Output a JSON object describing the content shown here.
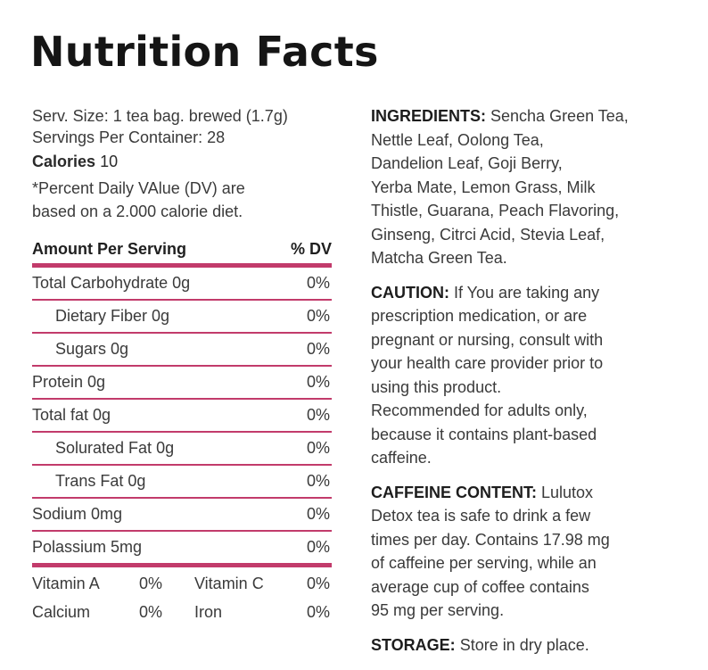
{
  "title": "Nutrition Facts",
  "serving": {
    "size": "Serv. Size: 1 tea bag. brewed (1.7g)",
    "per_container": "Servings Per Container: 28",
    "calories_label": "Calories",
    "calories_value": "10",
    "dv_note_1": "*Percent Daily VAlue (DV) are",
    "dv_note_2": "based on a 2.000 calorie diet."
  },
  "table": {
    "header_left": "Amount Per Serving",
    "header_right": "% DV",
    "rows": [
      {
        "label": "Total Carbohydrate 0g",
        "dv": "0%"
      },
      {
        "label": "Dietary Fiber 0g",
        "dv": "0%"
      },
      {
        "label": "Sugars 0g",
        "dv": "0%"
      },
      {
        "label": "Protein 0g",
        "dv": "0%"
      },
      {
        "label": "Total fat 0g",
        "dv": "0%"
      },
      {
        "label": "Solurated Fat 0g",
        "dv": "0%"
      },
      {
        "label": "Trans Fat 0g",
        "dv": "0%"
      },
      {
        "label": "Sodium 0mg",
        "dv": "0%"
      },
      {
        "label": "Polassium 5mg",
        "dv": "0%"
      }
    ]
  },
  "vitamins": [
    {
      "name1": "Vitamin A",
      "val1": "0%",
      "name2": "Vitamin C",
      "val2": "0%"
    },
    {
      "name1": "Calcium",
      "val1": "0%",
      "name2": "Iron",
      "val2": "0%"
    }
  ],
  "ingredients": {
    "label": "INGREDIENTS:",
    "lines": [
      " Sencha Green Tea,",
      "Nettle Leaf, Oolong Tea,",
      "Dandelion Leaf, Goji Berry,",
      "Yerba Mate, Lemon Grass, Milk",
      "Thistle, Guarana, Peach Flavoring,",
      "Ginseng, Citrci Acid, Stevia Leaf,",
      "Matcha Green Tea."
    ]
  },
  "caution": {
    "label": "CAUTION:",
    "lines": [
      " If You are taking any",
      "prescription medication, or are",
      "pregnant or nursing, consult with",
      "your health care provider prior to",
      "using this product.",
      "Recommended for adults only,",
      "because it contains plant-based",
      "caffeine."
    ]
  },
  "caffeine": {
    "label": "CAFFEINE CONTENT:",
    "lines": [
      " Lulutox",
      "Detox tea is safe to drink a few",
      "times per day. Contains 17.98 mg",
      "of caffeine per serving, while an",
      "average cup of coffee contains",
      "95 mg per serving."
    ]
  },
  "storage": {
    "label": "STORAGE:",
    "text": " Store in dry place."
  },
  "colors": {
    "rule": "#c23b6b",
    "text": "#3a3a3a",
    "title": "#151515"
  }
}
